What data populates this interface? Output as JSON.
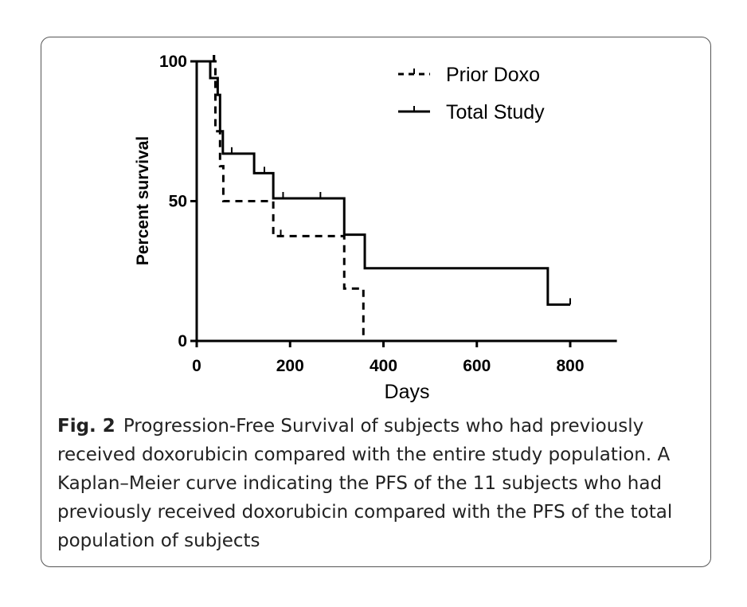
{
  "chart_data": {
    "type": "line",
    "subtype": "kaplan-meier step",
    "xlabel": "Days",
    "ylabel": "Percent survival",
    "xlim": [
      0,
      900
    ],
    "ylim": [
      0,
      100
    ],
    "xticks": [
      0,
      200,
      400,
      600,
      800
    ],
    "yticks": [
      0,
      50,
      100
    ],
    "legend_position": "top-right",
    "series": [
      {
        "name": "Prior Doxo",
        "style": "dashed",
        "steps": [
          [
            0,
            100
          ],
          [
            40,
            100
          ],
          [
            40,
            75
          ],
          [
            50,
            75
          ],
          [
            50,
            62.5
          ],
          [
            57,
            62.5
          ],
          [
            57,
            50
          ],
          [
            164,
            50
          ],
          [
            164,
            37.5
          ],
          [
            316,
            37.5
          ],
          [
            316,
            18.75
          ],
          [
            357,
            18.75
          ],
          [
            357,
            0
          ]
        ],
        "censored": [
          [
            38,
            100
          ],
          [
            180,
            37.5
          ]
        ]
      },
      {
        "name": "Total Study",
        "style": "solid",
        "steps": [
          [
            0,
            100
          ],
          [
            29,
            100
          ],
          [
            29,
            94
          ],
          [
            45,
            94
          ],
          [
            45,
            88
          ],
          [
            50,
            88
          ],
          [
            50,
            75
          ],
          [
            56,
            75
          ],
          [
            56,
            67
          ],
          [
            123,
            67
          ],
          [
            123,
            60
          ],
          [
            164,
            60
          ],
          [
            164,
            51
          ],
          [
            316,
            51
          ],
          [
            316,
            38
          ],
          [
            360,
            38
          ],
          [
            360,
            26
          ],
          [
            752,
            26
          ],
          [
            752,
            13
          ],
          [
            800,
            13
          ]
        ],
        "censored": [
          [
            36,
            100
          ],
          [
            75,
            67
          ],
          [
            145,
            60
          ],
          [
            185,
            51
          ],
          [
            265,
            51
          ],
          [
            800,
            13
          ]
        ]
      }
    ]
  },
  "caption": {
    "label": "Fig. 2",
    "text": "Progression-Free Survival of subjects who had previously received doxorubicin compared with the entire study population. A Kaplan–Meier curve indicating the PFS of the 11 subjects who had previously received doxorubicin compared with the PFS of the total population of subjects"
  }
}
